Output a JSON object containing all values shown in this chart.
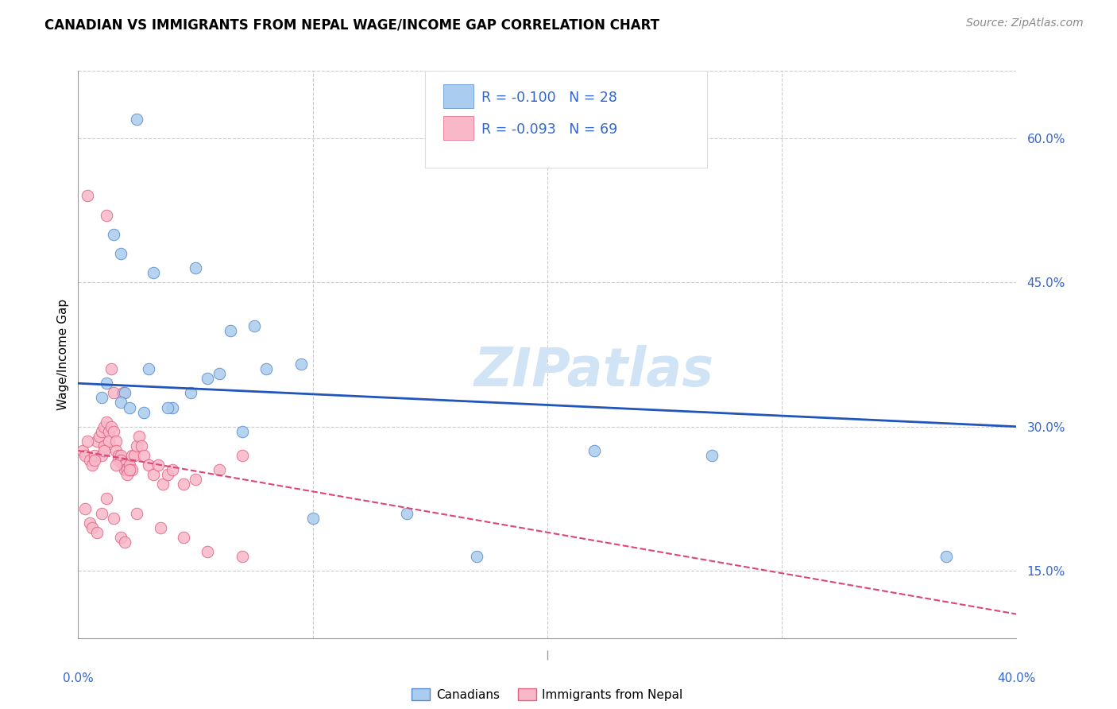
{
  "title": "CANADIAN VS IMMIGRANTS FROM NEPAL WAGE/INCOME GAP CORRELATION CHART",
  "source": "Source: ZipAtlas.com",
  "ylabel": "Wage/Income Gap",
  "xmin": 0.0,
  "xmax": 40.0,
  "ymin": 8.0,
  "ymax": 67.0,
  "ytick_vals": [
    15.0,
    30.0,
    45.0,
    60.0
  ],
  "xtick_vals": [
    10.0,
    20.0,
    30.0
  ],
  "legend_R_blue": "-0.100",
  "legend_N_blue": "28",
  "legend_R_pink": "-0.093",
  "legend_N_pink": "69",
  "canadians_x": [
    2.5,
    1.5,
    1.8,
    3.2,
    5.0,
    6.5,
    7.5,
    8.0,
    5.5,
    9.5,
    1.2,
    2.0,
    3.0,
    4.0,
    4.8,
    6.0,
    2.8,
    3.8,
    7.0,
    10.0,
    14.0,
    17.0,
    22.0,
    27.0,
    37.0,
    1.0,
    1.8,
    2.2
  ],
  "canadians_y": [
    62.0,
    50.0,
    48.0,
    46.0,
    46.5,
    40.0,
    40.5,
    36.0,
    35.0,
    36.5,
    34.5,
    33.5,
    36.0,
    32.0,
    33.5,
    35.5,
    31.5,
    32.0,
    29.5,
    20.5,
    21.0,
    16.5,
    27.5,
    27.0,
    16.5,
    33.0,
    32.5,
    32.0
  ],
  "nepal_x": [
    0.2,
    0.3,
    0.4,
    0.5,
    0.6,
    0.7,
    0.8,
    0.9,
    1.0,
    1.0,
    1.1,
    1.1,
    1.2,
    1.2,
    1.3,
    1.3,
    1.4,
    1.4,
    1.5,
    1.5,
    1.6,
    1.6,
    1.7,
    1.7,
    1.8,
    1.8,
    1.9,
    1.9,
    2.0,
    2.0,
    2.1,
    2.1,
    2.2,
    2.3,
    2.3,
    2.4,
    2.5,
    2.6,
    2.7,
    2.8,
    3.0,
    3.2,
    3.4,
    3.6,
    3.8,
    4.0,
    4.5,
    5.0,
    6.0,
    7.0,
    0.3,
    0.5,
    0.6,
    0.8,
    1.0,
    1.2,
    1.5,
    1.8,
    2.0,
    2.5,
    3.5,
    4.5,
    5.5,
    7.0,
    0.4,
    0.7,
    1.1,
    1.6,
    2.2
  ],
  "nepal_y": [
    27.5,
    27.0,
    54.0,
    26.5,
    26.0,
    27.0,
    28.5,
    29.0,
    29.5,
    27.0,
    30.0,
    28.0,
    30.5,
    52.0,
    29.5,
    28.5,
    30.0,
    36.0,
    29.5,
    33.5,
    28.5,
    27.5,
    27.0,
    26.5,
    27.0,
    26.5,
    26.0,
    33.5,
    26.0,
    25.5,
    25.5,
    25.0,
    26.0,
    27.0,
    25.5,
    27.0,
    28.0,
    29.0,
    28.0,
    27.0,
    26.0,
    25.0,
    26.0,
    24.0,
    25.0,
    25.5,
    24.0,
    24.5,
    25.5,
    27.0,
    21.5,
    20.0,
    19.5,
    19.0,
    21.0,
    22.5,
    20.5,
    18.5,
    18.0,
    21.0,
    19.5,
    18.5,
    17.0,
    16.5,
    28.5,
    26.5,
    27.5,
    26.0,
    25.5
  ],
  "blue_line_y_start": 34.5,
  "blue_line_y_end": 30.0,
  "pink_line_y_start": 27.5,
  "pink_line_y_end": 10.5,
  "color_blue_fill": "#aaccee",
  "color_blue_edge": "#5588cc",
  "color_pink_fill": "#f8b8c8",
  "color_pink_edge": "#e06080",
  "color_blue_line": "#2255bb",
  "color_pink_line": "#dd4477",
  "color_legend_text": "#3366cc",
  "background_color": "#ffffff",
  "grid_color": "#cccccc",
  "watermark_text": "ZIPatlas",
  "watermark_color": "#d0e4f5"
}
